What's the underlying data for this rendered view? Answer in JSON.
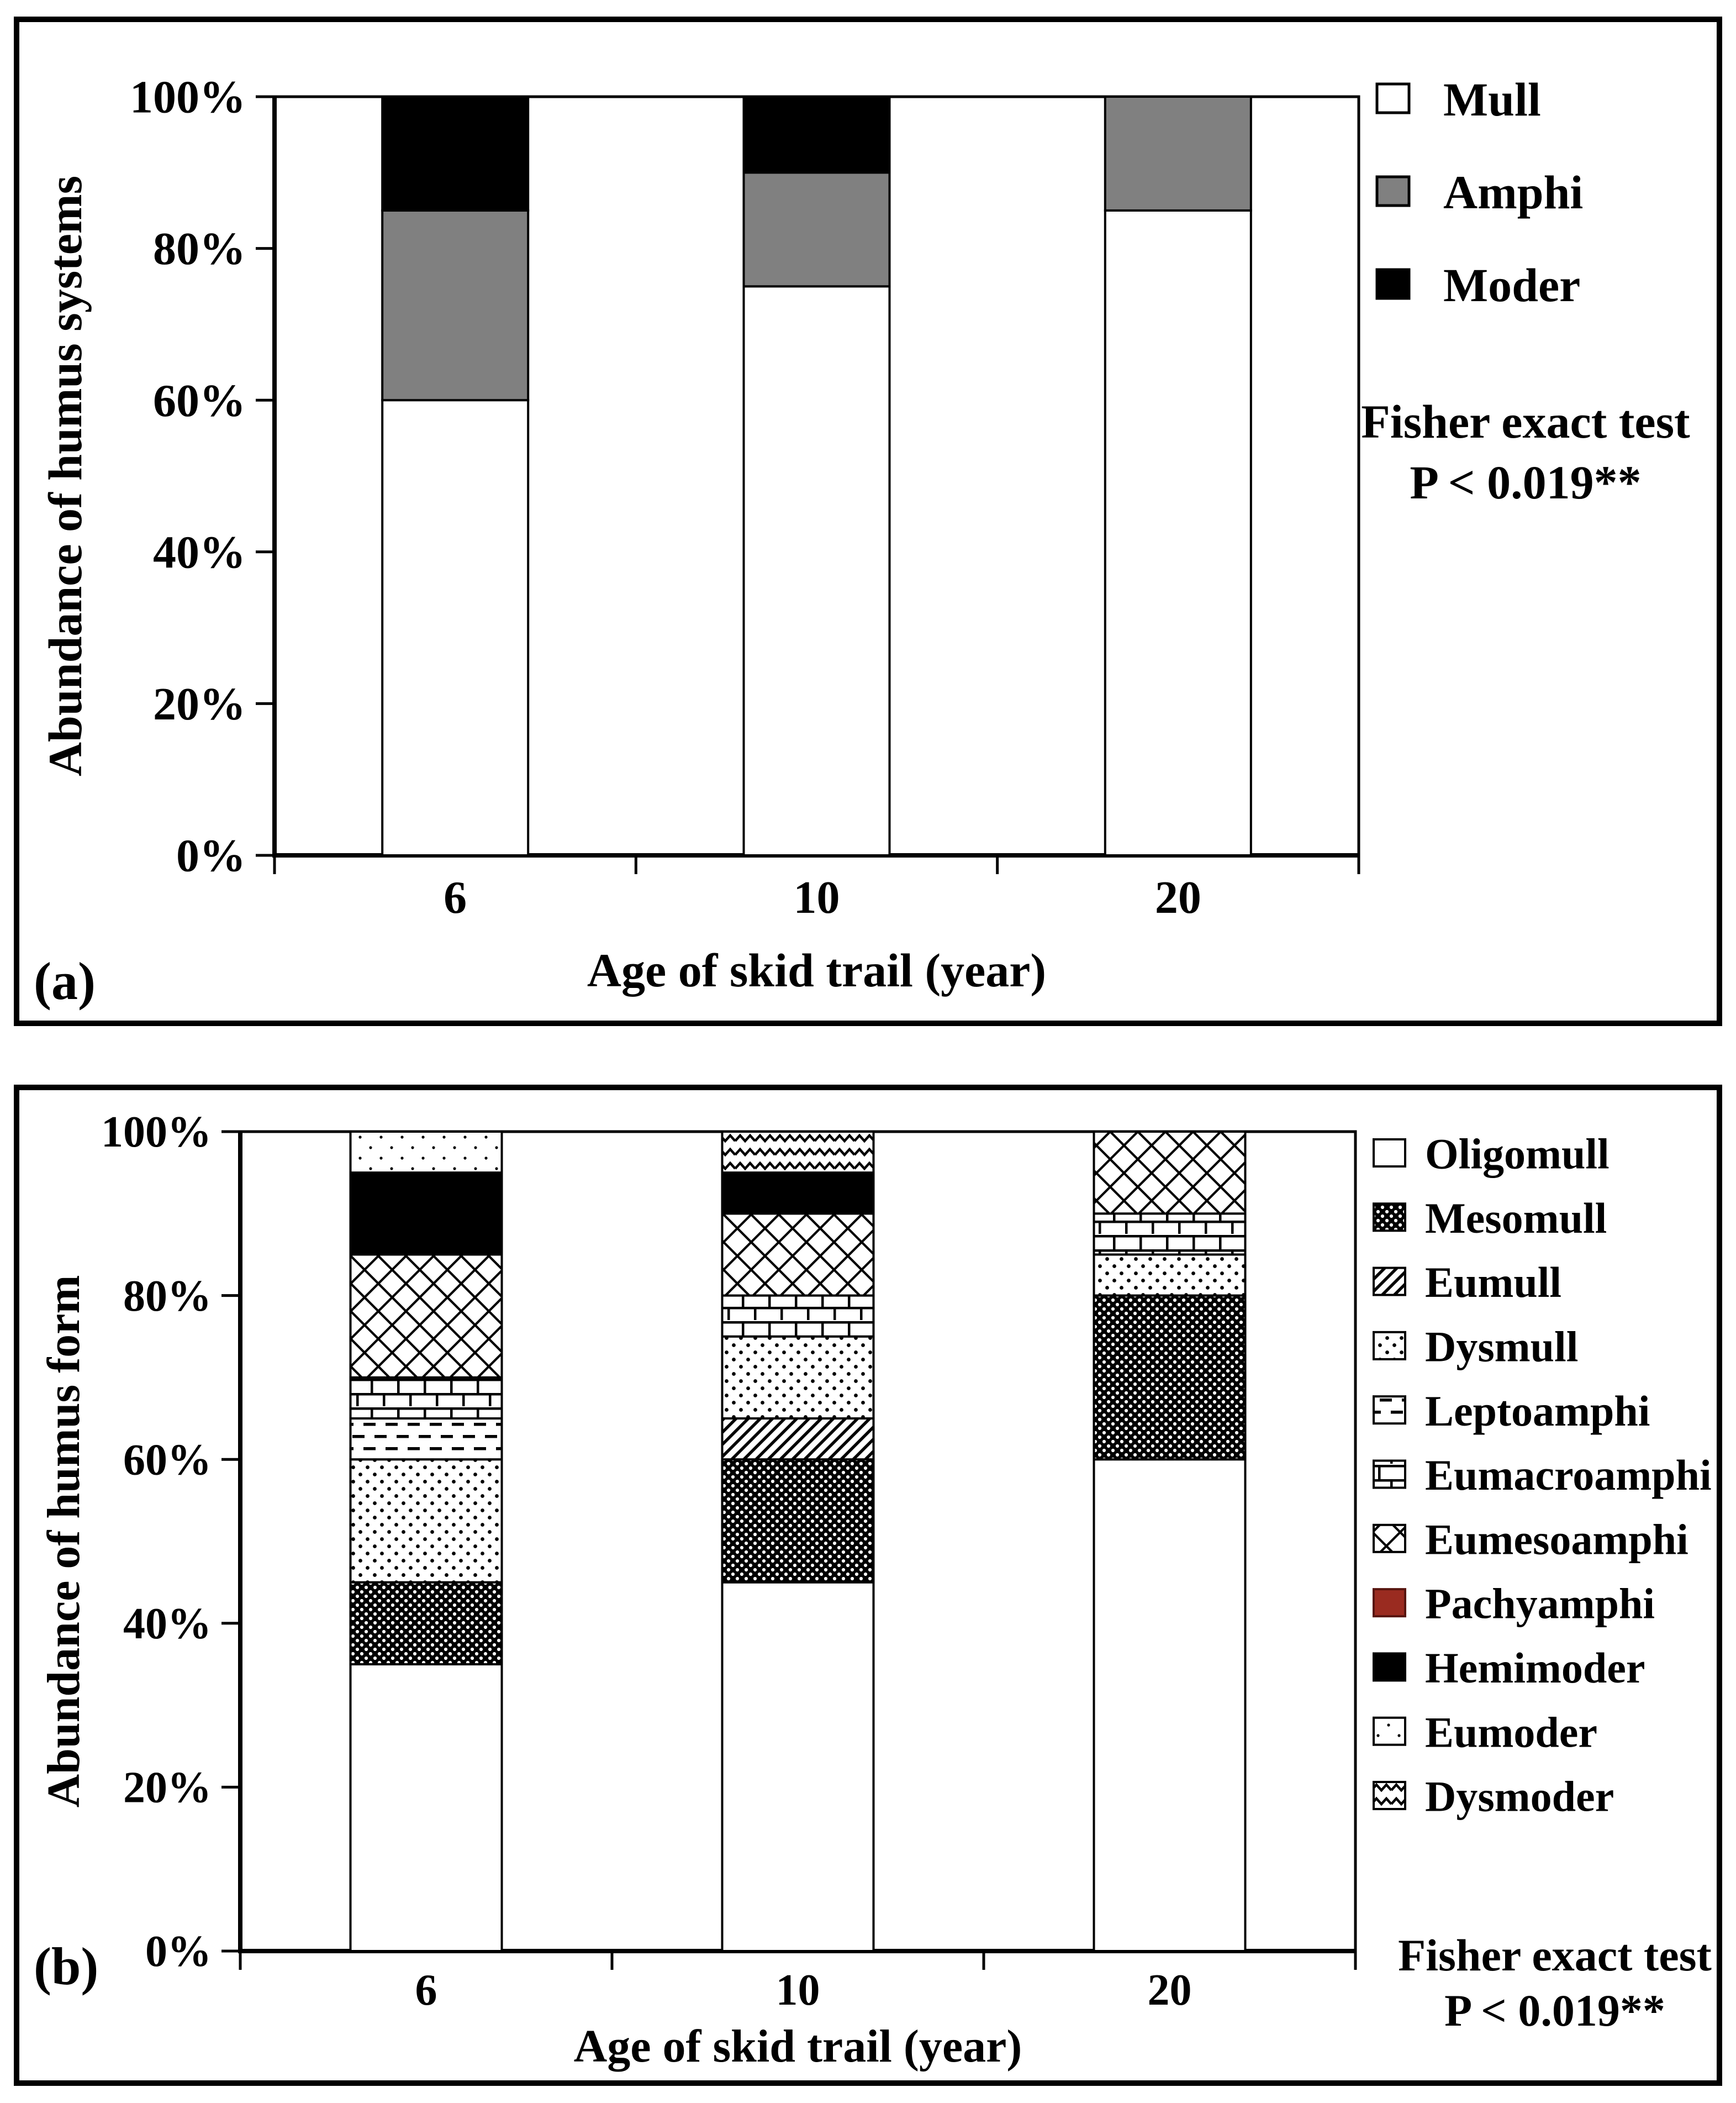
{
  "figure": {
    "background": "#ffffff",
    "border_color": "#000000"
  },
  "chart_data": [
    {
      "type": "bar",
      "stacked": true,
      "percent": true,
      "panel_label": "(a)",
      "title": "",
      "xlabel": "Age of skid trail (year)",
      "ylabel": "Abundance of humus systems",
      "categories": [
        "6",
        "10",
        "20"
      ],
      "yticks": [
        "0%",
        "20%",
        "40%",
        "60%",
        "80%",
        "100%"
      ],
      "ylim": [
        0,
        100
      ],
      "grid": false,
      "legend_position": "right",
      "series": [
        {
          "name": "Mull",
          "values": [
            60,
            75,
            85
          ],
          "fill": "#ffffff"
        },
        {
          "name": "Amphi",
          "values": [
            25,
            15,
            15
          ],
          "fill": "#808080"
        },
        {
          "name": "Moder",
          "values": [
            15,
            10,
            0
          ],
          "fill": "#000000"
        }
      ],
      "note": [
        "Fisher exact test",
        "P < 0.019**"
      ]
    },
    {
      "type": "bar",
      "stacked": true,
      "percent": true,
      "panel_label": "(b)",
      "title": "",
      "xlabel": "Age of skid trail (year)",
      "ylabel": "Abundance of humus form",
      "categories": [
        "6",
        "10",
        "20"
      ],
      "yticks": [
        "0%",
        "20%",
        "40%",
        "60%",
        "80%",
        "100%"
      ],
      "ylim": [
        0,
        100
      ],
      "grid": false,
      "legend_position": "right",
      "series": [
        {
          "name": "Oligomull",
          "values": [
            35,
            45,
            60
          ],
          "fill": "#ffffff"
        },
        {
          "name": "Mesomull",
          "values": [
            10,
            15,
            20
          ],
          "pattern": "mesomull"
        },
        {
          "name": "Eumull",
          "values": [
            0,
            5,
            0
          ],
          "pattern": "eumull"
        },
        {
          "name": "Dysmull",
          "values": [
            15,
            10,
            5
          ],
          "pattern": "dysmull"
        },
        {
          "name": "Leptoamphi",
          "values": [
            5,
            0,
            0
          ],
          "pattern": "leptoamphi"
        },
        {
          "name": "Eumacroamphi",
          "values": [
            5,
            5,
            5
          ],
          "pattern": "eumacroamphi"
        },
        {
          "name": "Eumesoamphi",
          "values": [
            15,
            10,
            10
          ],
          "pattern": "eumesoamphi"
        },
        {
          "name": "Pachyamphi",
          "values": [
            0,
            0,
            0
          ],
          "fill": "#9a2b20",
          "stroke": "#58150f"
        },
        {
          "name": "Hemimoder",
          "values": [
            10,
            5,
            0
          ],
          "fill": "#000000"
        },
        {
          "name": "Eumoder",
          "values": [
            5,
            0,
            0
          ],
          "pattern": "eumoder"
        },
        {
          "name": "Dysmoder",
          "values": [
            0,
            5,
            0
          ],
          "pattern": "dysmoder"
        }
      ],
      "note": [
        "Fisher exact test",
        "P < 0.019**"
      ]
    }
  ],
  "colors": {
    "mull_white": "#ffffff",
    "amphi_gray": "#808080",
    "moder_black": "#000000",
    "pachyamphi_red": "#9a2b20"
  }
}
